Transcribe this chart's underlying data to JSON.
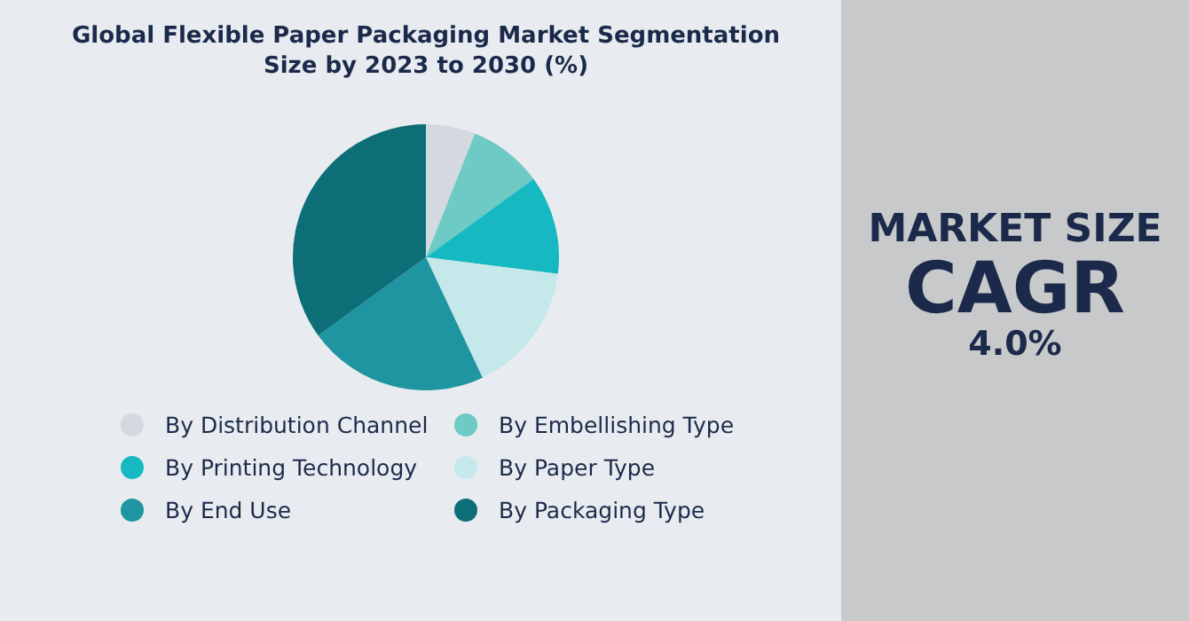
{
  "chart_data": {
    "type": "pie",
    "title": "Global Flexible Paper Packaging Market Segmentation Size by 2023 to 2030 (%)",
    "categories": [
      "By Distribution Channel",
      "By Embellishing Type",
      "By Printing Technology",
      "By Paper Type",
      "By End Use",
      "By Packaging Type"
    ],
    "values": [
      6,
      9,
      12,
      16,
      22,
      35
    ],
    "colors": [
      "#d3d9df",
      "#6dcac4",
      "#16b9c1",
      "#c5e8ea",
      "#1e95a0",
      "#0e6e77"
    ],
    "legend": "bottom",
    "annotations": [
      "MARKET SIZE",
      "CAGR",
      "4.0%"
    ]
  }
}
